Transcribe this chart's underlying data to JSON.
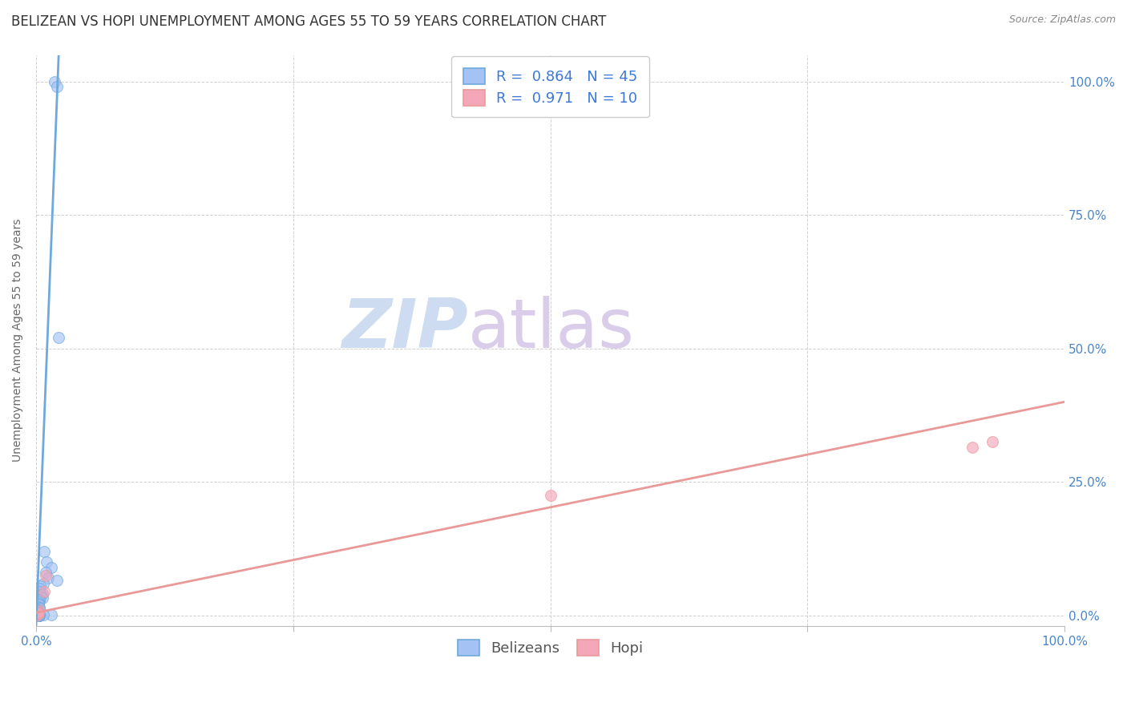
{
  "title": "BELIZEAN VS HOPI UNEMPLOYMENT AMONG AGES 55 TO 59 YEARS CORRELATION CHART",
  "source": "Source: ZipAtlas.com",
  "ylabel": "Unemployment Among Ages 55 to 59 years",
  "ytick_labels_right": [
    "0.0%",
    "25.0%",
    "50.0%",
    "75.0%",
    "100.0%"
  ],
  "ytick_values": [
    0.0,
    0.25,
    0.5,
    0.75,
    1.0
  ],
  "xlim": [
    0.0,
    1.0
  ],
  "ylim": [
    -0.02,
    1.05
  ],
  "belizean_R": 0.864,
  "belizean_N": 45,
  "hopi_R": 0.971,
  "hopi_N": 10,
  "belizean_color": "#6fa8dc",
  "hopi_color": "#ea9999",
  "belizean_scatter_color": "#a4c2f4",
  "hopi_scatter_color": "#f4a7b9",
  "background_color": "#ffffff",
  "watermark_zip": "ZIP",
  "watermark_atlas": "atlas",
  "watermark_color_zip": "#c9d9f0",
  "watermark_color_atlas": "#d5c8e8",
  "tick_color": "#4a86c8",
  "belizean_points_x": [
    0.018,
    0.02,
    0.022,
    0.008,
    0.01,
    0.015,
    0.009,
    0.012,
    0.02,
    0.007,
    0.004,
    0.003,
    0.003,
    0.006,
    0.005,
    0.004,
    0.006,
    0.003,
    0.003,
    0.002,
    0.002,
    0.002,
    0.001,
    0.003,
    0.003,
    0.001,
    0.001,
    0.001,
    0.001,
    0.001,
    0.001,
    0.003,
    0.003,
    0.003,
    0.001,
    0.015,
    0.007,
    0.003,
    0.003,
    0.003,
    0.002,
    0.002,
    0.002,
    0.001,
    0.001
  ],
  "belizean_points_y": [
    1.0,
    0.99,
    0.52,
    0.12,
    0.1,
    0.09,
    0.08,
    0.07,
    0.065,
    0.06,
    0.055,
    0.05,
    0.045,
    0.04,
    0.038,
    0.035,
    0.032,
    0.03,
    0.028,
    0.025,
    0.022,
    0.02,
    0.018,
    0.015,
    0.013,
    0.012,
    0.01,
    0.009,
    0.007,
    0.006,
    0.005,
    0.004,
    0.003,
    0.002,
    0.001,
    0.001,
    0.001,
    0.001,
    0.0,
    0.0,
    0.0,
    0.0,
    0.0,
    0.0,
    0.0
  ],
  "hopi_points_x": [
    0.0,
    0.001,
    0.002,
    0.003,
    0.008,
    0.009,
    0.5,
    0.91,
    0.93,
    0.002
  ],
  "hopi_points_y": [
    0.0,
    0.003,
    0.004,
    0.008,
    0.045,
    0.075,
    0.225,
    0.315,
    0.325,
    0.004
  ],
  "belizean_line_x": [
    0.0,
    0.022
  ],
  "belizean_line_y": [
    -0.02,
    1.05
  ],
  "hopi_line_x": [
    0.0,
    1.0
  ],
  "hopi_line_y": [
    0.005,
    0.4
  ],
  "title_fontsize": 12,
  "axis_label_fontsize": 10,
  "tick_fontsize": 11,
  "legend_fontsize": 13,
  "scatter_alpha": 0.65,
  "scatter_size": 100,
  "grid_color": "#d0d0d0",
  "grid_linestyle": "--",
  "grid_linewidth": 0.7,
  "stat_color": "#3c78d8"
}
